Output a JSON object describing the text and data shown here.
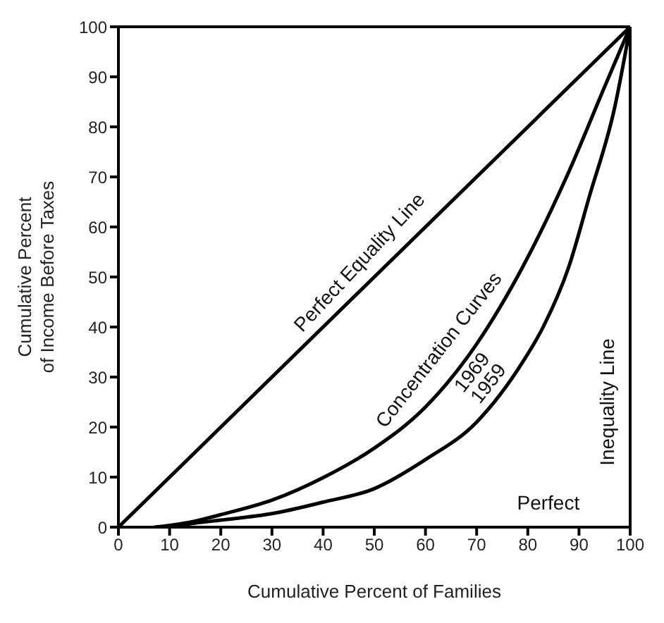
{
  "chart_data": {
    "type": "line",
    "xlabel": "Cumulative Percent of Families",
    "ylabel": "Cumulative Percent\nof Income Before Taxes",
    "xlim": [
      0,
      100
    ],
    "ylim": [
      0,
      100
    ],
    "xticks": [
      0,
      10,
      20,
      30,
      40,
      50,
      60,
      70,
      80,
      90,
      100
    ],
    "yticks": [
      0,
      10,
      20,
      30,
      40,
      50,
      60,
      70,
      80,
      90,
      100
    ],
    "grid": false,
    "legend": false,
    "marker": "none",
    "line_style": "solid",
    "series": [
      {
        "color": "#000000",
        "x": [
          0,
          100
        ],
        "values": [
          0,
          100
        ]
      },
      {
        "name": "1969",
        "color": "#000000",
        "x": [
          7,
          15,
          20,
          30,
          40,
          50,
          60,
          70,
          79,
          88,
          95,
          100
        ],
        "values": [
          0,
          1.2,
          2.5,
          5.4,
          9.9,
          15.8,
          24,
          36.6,
          52,
          71,
          88,
          100
        ]
      },
      {
        "name": "1959",
        "color": "#000000",
        "x": [
          10,
          15,
          20,
          30,
          40,
          50,
          60,
          70,
          79,
          83,
          88,
          92,
          97,
          100
        ],
        "values": [
          0,
          0.8,
          1.4,
          2.7,
          5,
          7.7,
          13.5,
          21,
          33,
          40,
          52,
          66,
          84,
          100
        ]
      }
    ],
    "ref_lines": [
      {
        "axis": "x",
        "value": 100,
        "color": "#000000"
      }
    ],
    "annotations": [
      "Perfect Equality Line",
      "Concentration Curves",
      "Perfect",
      "Inequality Line"
    ]
  }
}
